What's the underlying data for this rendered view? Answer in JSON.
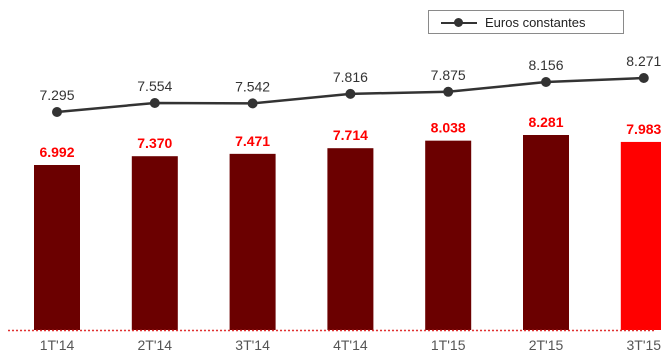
{
  "legend": {
    "label": "Euros constantes"
  },
  "colors": {
    "bar": "#6b0000",
    "bar_highlight": "#ff0000",
    "bar_label": "#ff0000",
    "line": "#333333",
    "baseline": "#e03030",
    "tick": "#555555"
  },
  "chart_data": {
    "type": "bar",
    "categories": [
      "1T'14",
      "2T'14",
      "3T'14",
      "4T'14",
      "1T'15",
      "2T'15",
      "3T'15"
    ],
    "series": [
      {
        "type": "bar",
        "values": [
          6.992,
          7.37,
          7.471,
          7.714,
          8.038,
          8.281,
          7.983
        ],
        "labels": [
          "6.992",
          "7.370",
          "7.471",
          "7.714",
          "8.038",
          "8.281",
          "7.983"
        ]
      },
      {
        "name": "Euros constantes",
        "type": "line",
        "values": [
          7.295,
          7.554,
          7.542,
          7.816,
          7.875,
          8.156,
          8.271
        ],
        "labels": [
          "7.295",
          "7.554",
          "7.542",
          "7.816",
          "7.875",
          "8.156",
          "8.271"
        ]
      }
    ],
    "highlighted_category": "3T'15",
    "grid": false,
    "legend_position": "top-right"
  }
}
